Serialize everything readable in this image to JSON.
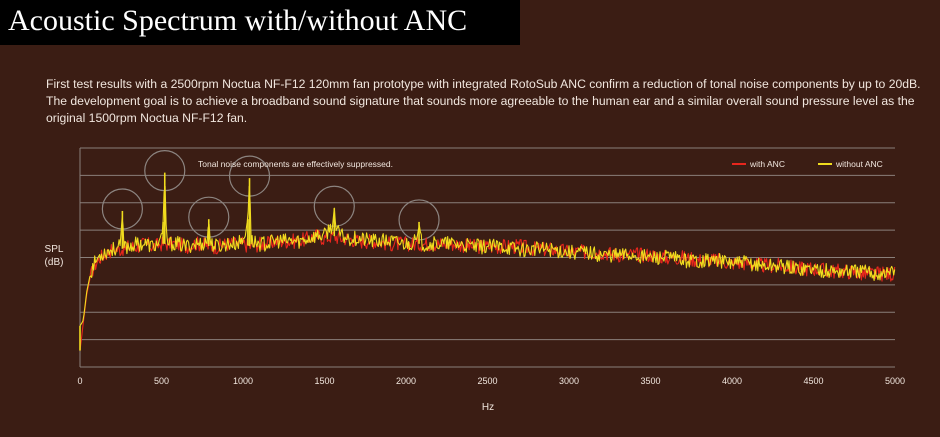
{
  "header": {
    "title": "Acoustic Spectrum with/without ANC"
  },
  "description": "First test results with a 2500rpm Noctua NF-F12 120mm fan prototype with integrated RotoSub ANC confirm a reduction of tonal noise components by up to 20dB. The development goal is to achieve a broadband sound signature that sounds more agreeable to the human ear and a similar overall sound pressure level as the original 1500rpm Noctua NF-F12 fan.",
  "colors": {
    "background": "#3b1d14",
    "with_anc": "#e8261d",
    "without_anc": "#f0dc1e",
    "grid": "#8a7f7a"
  },
  "chart_data": {
    "type": "line",
    "title": "",
    "xlabel": "Hz",
    "ylabel": [
      "SPL",
      "(dB)"
    ],
    "annotation": "Tonal noise components are effectively suppressed.",
    "xlim": [
      0,
      5000
    ],
    "ylim": [
      0,
      8
    ],
    "x_ticks": [
      0,
      500,
      1000,
      1500,
      2000,
      2500,
      3000,
      3500,
      4000,
      4500,
      5000
    ],
    "grid": "horizontal",
    "legend_position": "top-right",
    "highlighted_peaks_hz": [
      260,
      520,
      790,
      1040,
      1560,
      2080
    ],
    "series": [
      {
        "name": "with ANC",
        "color": "#e8261d",
        "x": [
          0,
          20,
          40,
          60,
          80,
          100,
          125,
          150,
          200,
          250,
          300,
          350,
          400,
          450,
          500,
          550,
          600,
          650,
          700,
          750,
          800,
          850,
          900,
          950,
          1000,
          1050,
          1100,
          1150,
          1200,
          1250,
          1300,
          1350,
          1400,
          1450,
          1500,
          1550,
          1600,
          1650,
          1700,
          1800,
          1900,
          2000,
          2100,
          2200,
          2300,
          2400,
          2500,
          2600,
          2700,
          2800,
          2900,
          3000,
          3100,
          3200,
          3300,
          3400,
          3500,
          3600,
          3700,
          3800,
          3900,
          4000,
          4100,
          4200,
          4300,
          4400,
          4500,
          4600,
          4700,
          4800,
          4900,
          5000
        ],
        "y": [
          0.6,
          1.6,
          2.6,
          3.2,
          3.6,
          3.8,
          4.0,
          4.1,
          4.3,
          4.3,
          4.4,
          4.4,
          4.5,
          4.4,
          4.5,
          4.5,
          4.5,
          4.4,
          4.5,
          4.5,
          4.4,
          4.4,
          4.5,
          4.5,
          4.5,
          4.4,
          4.5,
          4.5,
          4.6,
          4.6,
          4.6,
          4.6,
          4.7,
          4.8,
          4.7,
          4.8,
          4.7,
          4.7,
          4.6,
          4.6,
          4.5,
          4.5,
          4.5,
          4.5,
          4.5,
          4.4,
          4.4,
          4.4,
          4.4,
          4.3,
          4.3,
          4.2,
          4.2,
          4.2,
          4.1,
          4.1,
          4.1,
          4.0,
          4.0,
          3.9,
          3.9,
          3.8,
          3.8,
          3.7,
          3.7,
          3.6,
          3.6,
          3.5,
          3.5,
          3.4,
          3.4,
          3.4
        ]
      },
      {
        "name": "without ANC",
        "color": "#f0dc1e",
        "x": [
          0,
          20,
          40,
          60,
          80,
          100,
          125,
          150,
          200,
          250,
          260,
          270,
          300,
          350,
          400,
          450,
          500,
          510,
          520,
          530,
          550,
          600,
          650,
          700,
          750,
          780,
          790,
          800,
          850,
          900,
          950,
          1000,
          1030,
          1040,
          1050,
          1100,
          1150,
          1200,
          1250,
          1300,
          1350,
          1400,
          1450,
          1500,
          1550,
          1560,
          1570,
          1600,
          1650,
          1700,
          1800,
          1900,
          2000,
          2070,
          2080,
          2090,
          2100,
          2200,
          2300,
          2400,
          2500,
          2600,
          2700,
          2800,
          2900,
          3000,
          3100,
          3200,
          3300,
          3400,
          3500,
          3600,
          3700,
          3800,
          3900,
          4000,
          4100,
          4200,
          4300,
          4400,
          4500,
          4600,
          4700,
          4800,
          4900,
          5000
        ],
        "y": [
          1.5,
          1.7,
          2.7,
          3.3,
          3.7,
          3.9,
          4.1,
          4.2,
          4.3,
          4.4,
          5.7,
          4.4,
          4.4,
          4.5,
          4.5,
          4.4,
          4.6,
          5.3,
          7.1,
          4.6,
          4.5,
          4.5,
          4.4,
          4.5,
          4.5,
          4.6,
          5.4,
          4.5,
          4.4,
          4.5,
          4.5,
          4.6,
          5.4,
          6.9,
          4.6,
          4.5,
          4.5,
          4.6,
          4.6,
          4.6,
          4.6,
          4.7,
          4.8,
          4.8,
          5.2,
          5.8,
          5.0,
          4.8,
          4.7,
          4.7,
          4.6,
          4.6,
          4.5,
          4.6,
          5.3,
          4.6,
          4.5,
          4.5,
          4.5,
          4.4,
          4.4,
          4.4,
          4.3,
          4.3,
          4.3,
          4.2,
          4.2,
          4.1,
          4.1,
          4.1,
          4.0,
          4.0,
          3.9,
          3.9,
          3.9,
          3.8,
          3.8,
          3.7,
          3.7,
          3.6,
          3.6,
          3.5,
          3.5,
          3.5,
          3.4,
          3.5
        ]
      }
    ]
  }
}
